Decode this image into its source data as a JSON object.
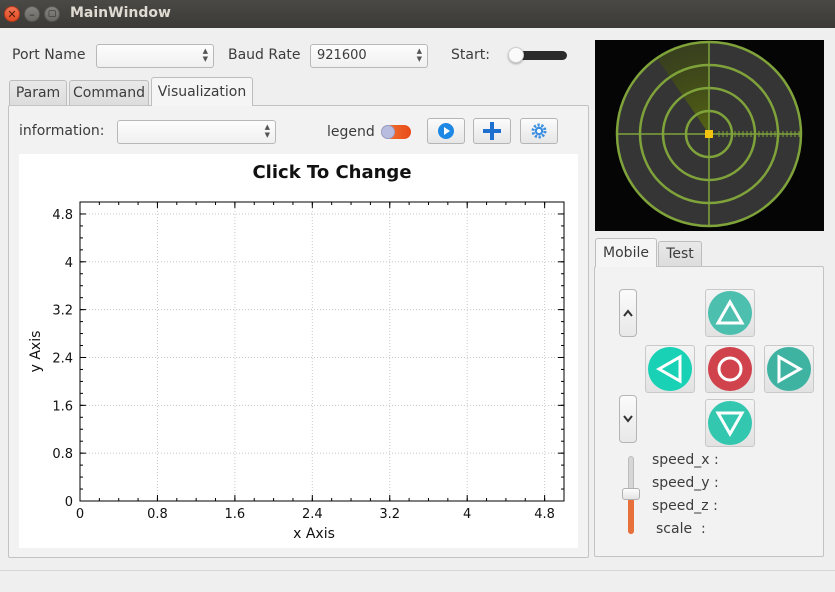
{
  "window": {
    "title": "MainWindow"
  },
  "top": {
    "port_label": "Port Name",
    "port_value": "",
    "baud_label": "Baud Rate",
    "baud_value": "921600",
    "start_label": "Start:"
  },
  "tabs": [
    {
      "label": "Param"
    },
    {
      "label": "Command"
    },
    {
      "label": "Visualization"
    }
  ],
  "visualization": {
    "info_label": "information:",
    "info_value": "",
    "legend_label": "legend"
  },
  "chart_data": {
    "type": "line",
    "title": "Click To Change",
    "xlabel": "x Axis",
    "ylabel": "y Axis",
    "xlim": [
      0,
      5
    ],
    "ylim": [
      0,
      5
    ],
    "xticks": [
      "0",
      "0.8",
      "1.6",
      "2.4",
      "3.2",
      "4",
      "4.8"
    ],
    "yticks": [
      "0",
      "0.8",
      "1.6",
      "2.4",
      "3.2",
      "4",
      "4.8"
    ],
    "grid": true,
    "series": []
  },
  "side_tabs": [
    {
      "label": "Mobile"
    },
    {
      "label": "Test"
    }
  ],
  "mobile": {
    "speed_x": "speed_x :",
    "speed_y": "speed_y :",
    "speed_z": "speed_z :",
    "scale": "scale  :"
  },
  "colors": {
    "teal": "#4cbfae",
    "red": "#d0424c",
    "radar_green": "#7fa33a"
  }
}
